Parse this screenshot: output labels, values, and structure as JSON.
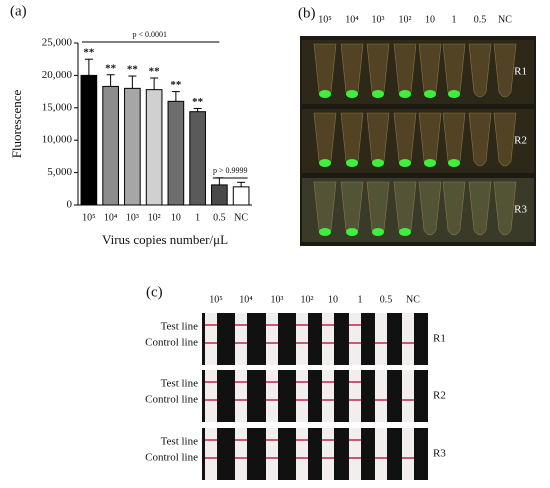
{
  "chart_data": {
    "type": "bar",
    "panel_label": "(a)",
    "x_label": "Virus copies number/μL",
    "y_label": "Fluorescence",
    "categories": [
      "10⁵",
      "10⁴",
      "10³",
      "10²",
      "10",
      "1",
      "0.5",
      "NC"
    ],
    "values": [
      20000,
      18300,
      18000,
      17800,
      16000,
      14400,
      3100,
      2800
    ],
    "errors": [
      2500,
      1800,
      1900,
      1800,
      1500,
      500,
      1100,
      700
    ],
    "colors": [
      "#000000",
      "#8c8c8c",
      "#a6a6a6",
      "#d0d0d0",
      "#6e6e6e",
      "#5a5a5a",
      "#4a4a4a",
      "#ffffff"
    ],
    "significance": [
      "**",
      "**",
      "**",
      "**",
      "**",
      "**"
    ],
    "comparisons": [
      "p < 0.0001",
      "p > 0.9999"
    ],
    "ylim": [
      0,
      25000
    ],
    "yticks": [
      0,
      {
        "value": 5000,
        "label": "5,000"
      },
      {
        "value": 10000,
        "label": "10,000"
      },
      {
        "value": 15000,
        "label": "15,000"
      },
      {
        "value": 20000,
        "label": "20,000"
      },
      {
        "value": 25000,
        "label": "25,000"
      }
    ]
  },
  "panel_b": {
    "label": "(b)",
    "columns": [
      "10⁵",
      "10⁴",
      "10³",
      "10²",
      "10",
      "1",
      "0.5",
      "NC"
    ],
    "rows": [
      "R1",
      "R2",
      "R3"
    ]
  },
  "panel_c": {
    "label": "(c)",
    "columns": [
      "10⁵",
      "10⁴",
      "10³",
      "10²",
      "10",
      "1",
      "0.5",
      "NC"
    ],
    "rows": [
      "R1",
      "R2",
      "R3"
    ],
    "line_labels": [
      "Test line",
      "Control line"
    ]
  }
}
